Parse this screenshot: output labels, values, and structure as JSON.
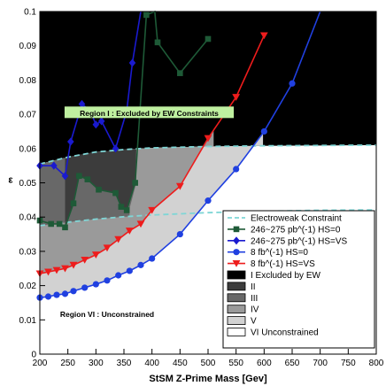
{
  "chart_data": {
    "type": "line",
    "xlabel": "StSM Z-Prime Mass [Gev]",
    "ylabel": "ε",
    "xlim": [
      200,
      800
    ],
    "ylim": [
      0,
      0.1
    ],
    "xticks": [
      200,
      250,
      300,
      350,
      400,
      450,
      500,
      550,
      600,
      650,
      700,
      750,
      800
    ],
    "yticks": [
      0,
      0.01,
      0.02,
      0.03,
      0.04,
      0.05,
      0.06,
      0.07,
      0.08,
      0.09,
      0.1
    ],
    "xtick_labels": [
      "200",
      "250",
      "300",
      "350",
      "400",
      "450",
      "500",
      "550",
      "600",
      "650",
      "700",
      "750",
      "800"
    ],
    "ytick_labels": [
      "0",
      "0.01",
      "0.02",
      "0.03",
      "0.04",
      "0.05",
      "0.06",
      "0.07",
      "0.08",
      "0.09",
      "0.1"
    ],
    "legend_position": "bottom-right",
    "regions": [
      {
        "name": "I Excluded by EW",
        "color": "#000000"
      },
      {
        "name": "II",
        "color": "#3c3c3c"
      },
      {
        "name": "III",
        "color": "#686868"
      },
      {
        "name": "IV",
        "color": "#9a9a9a"
      },
      {
        "name": "V",
        "color": "#d2d2d2"
      },
      {
        "name": "VI Unconstrained",
        "color": "#ffffff"
      }
    ],
    "series": [
      {
        "name": "Electroweak Constraint",
        "style": "dashed",
        "color": "#7fd6d6",
        "x": [
          200,
          250,
          300,
          350,
          400,
          500,
          600,
          700,
          800
        ],
        "y": [
          0.0555,
          0.0575,
          0.059,
          0.0597,
          0.0602,
          0.0606,
          0.0608,
          0.0609,
          0.061
        ]
      },
      {
        "name": "Electroweak Constraint (lower)",
        "style": "dashed",
        "color": "#7fd6d6",
        "x": [
          200,
          250,
          300,
          350,
          400,
          500,
          600,
          700,
          800
        ],
        "y": [
          0.0375,
          0.0385,
          0.0394,
          0.0401,
          0.0406,
          0.0413,
          0.0417,
          0.042,
          0.0421
        ]
      },
      {
        "name": "246~275 pb^(-1) HS=0",
        "marker": "square",
        "color": "#1e5a37",
        "x": [
          200,
          220,
          235,
          245,
          260,
          270,
          285,
          305,
          335,
          345,
          355,
          370,
          390,
          405,
          410,
          450,
          500
        ],
        "y": [
          0.039,
          0.038,
          0.038,
          0.037,
          0.044,
          0.052,
          0.051,
          0.048,
          0.047,
          0.043,
          0.042,
          0.05,
          0.099,
          0.1,
          0.091,
          0.082,
          0.092
        ]
      },
      {
        "name": "246~275 pb^(-1) HS=VS",
        "marker": "diamond",
        "color": "#1a1acf",
        "x": [
          200,
          225,
          245,
          255,
          275,
          290,
          300,
          310,
          335,
          355,
          365,
          380
        ],
        "y": [
          0.055,
          0.055,
          0.052,
          0.062,
          0.073,
          0.071,
          0.067,
          0.068,
          0.06,
          0.071,
          0.085,
          0.1
        ]
      },
      {
        "name": "8 fb^(-1) HS=0",
        "marker": "circle",
        "color": "#2040e0",
        "x": [
          200,
          215,
          230,
          245,
          260,
          280,
          300,
          320,
          340,
          360,
          380,
          400,
          450,
          500,
          550,
          600,
          650,
          700
        ],
        "y": [
          0.0165,
          0.0168,
          0.0173,
          0.0176,
          0.0184,
          0.0194,
          0.0204,
          0.0215,
          0.023,
          0.0243,
          0.026,
          0.0279,
          0.035,
          0.0448,
          0.054,
          0.065,
          0.079,
          0.1
        ]
      },
      {
        "name": "8 fb^(-1) HS=VS",
        "marker": "triangle-down",
        "color": "#ee1c1c",
        "x": [
          200,
          215,
          230,
          245,
          260,
          280,
          300,
          320,
          340,
          360,
          380,
          400,
          450,
          500,
          550,
          600
        ],
        "y": [
          0.0235,
          0.024,
          0.0245,
          0.025,
          0.026,
          0.0275,
          0.029,
          0.031,
          0.0335,
          0.036,
          0.038,
          0.042,
          0.049,
          0.063,
          0.075,
          0.093
        ]
      }
    ],
    "annotations": [
      {
        "text": "Region I : Excluded by EW Constraints",
        "x": 395,
        "y": 0.0702,
        "boxed": true,
        "box_color": "#bff0a0"
      },
      {
        "text": "Region VI : Unconstrained",
        "x": 320,
        "y": 0.0115,
        "boxed": false
      }
    ]
  }
}
